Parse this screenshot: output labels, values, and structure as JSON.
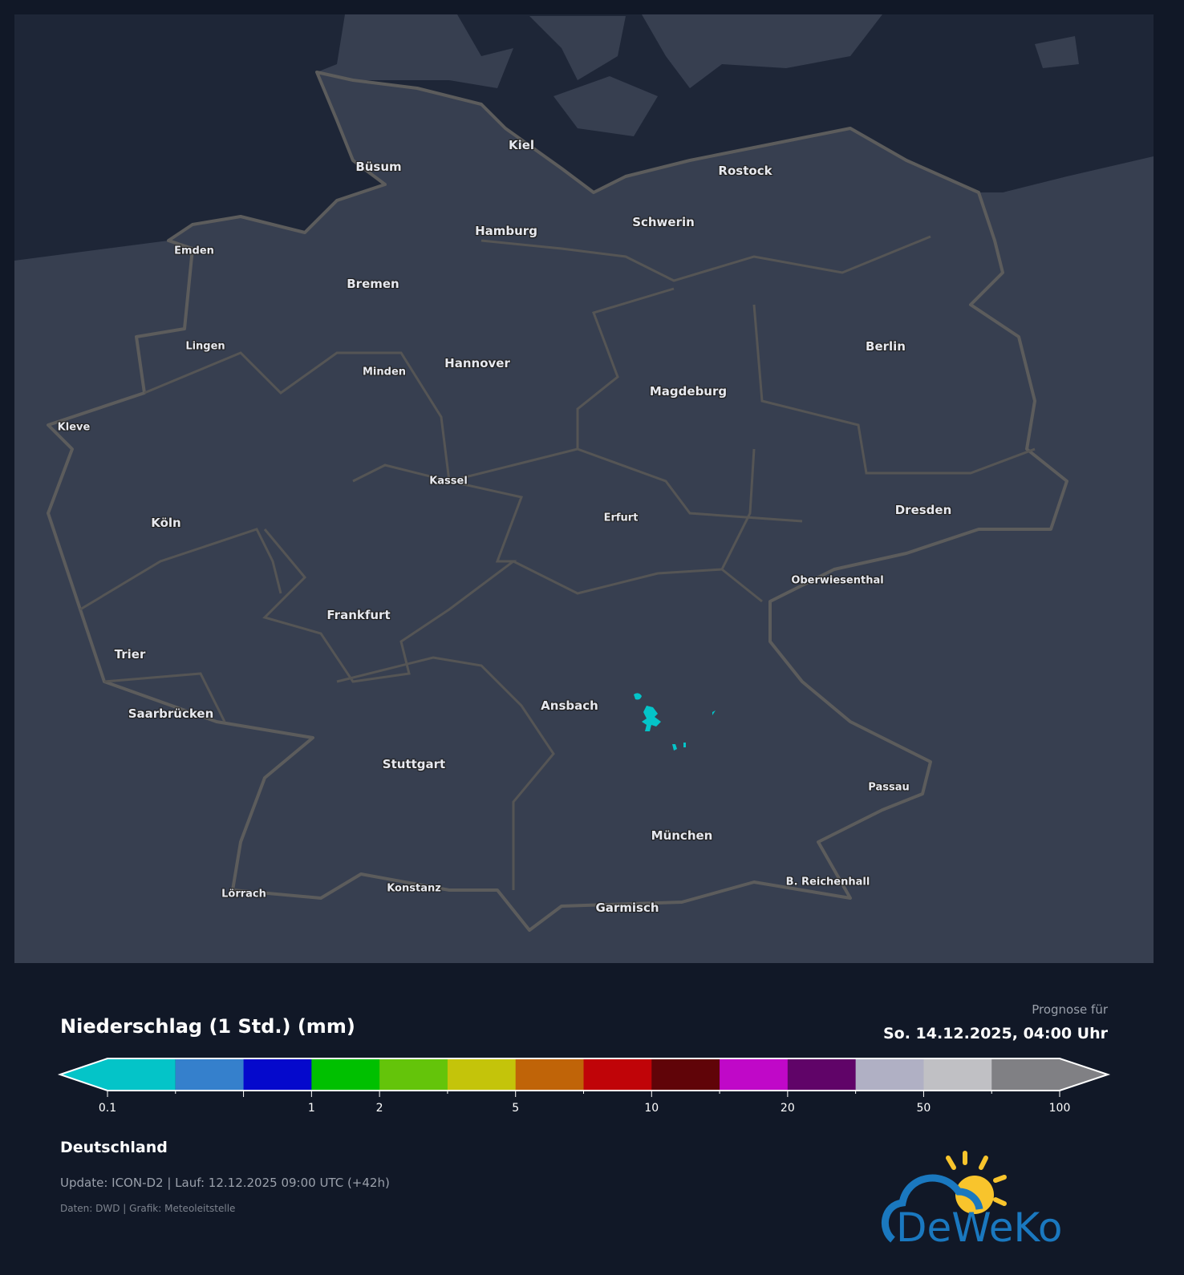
{
  "map": {
    "colors": {
      "land": "#373f50",
      "sea": "#1e2637",
      "border": "#5a5a5a",
      "precip": "#04c4c8"
    },
    "cities": [
      {
        "name": "Kiel",
        "size": "big"
      },
      {
        "name": "Büsum",
        "size": "big"
      },
      {
        "name": "Rostock",
        "size": "big"
      },
      {
        "name": "Schwerin",
        "size": "big"
      },
      {
        "name": "Hamburg",
        "size": "big"
      },
      {
        "name": "Emden",
        "size": "small"
      },
      {
        "name": "Bremen",
        "size": "big"
      },
      {
        "name": "Lingen",
        "size": "small"
      },
      {
        "name": "Minden",
        "size": "small"
      },
      {
        "name": "Hannover",
        "size": "big"
      },
      {
        "name": "Berlin",
        "size": "big"
      },
      {
        "name": "Magdeburg",
        "size": "big"
      },
      {
        "name": "Kleve",
        "size": "small"
      },
      {
        "name": "Kassel",
        "size": "small"
      },
      {
        "name": "Dresden",
        "size": "big"
      },
      {
        "name": "Köln",
        "size": "big"
      },
      {
        "name": "Erfurt",
        "size": "small"
      },
      {
        "name": "Oberwiesenthal",
        "size": "small"
      },
      {
        "name": "Frankfurt",
        "size": "big"
      },
      {
        "name": "Trier",
        "size": "big"
      },
      {
        "name": "Saarbrücken",
        "size": "big"
      },
      {
        "name": "Ansbach",
        "size": "big"
      },
      {
        "name": "Stuttgart",
        "size": "big"
      },
      {
        "name": "Passau",
        "size": "small"
      },
      {
        "name": "München",
        "size": "big"
      },
      {
        "name": "B. Reichenhall",
        "size": "small"
      },
      {
        "name": "Lörrach",
        "size": "small"
      },
      {
        "name": "Konstanz",
        "size": "small"
      },
      {
        "name": "Garmisch",
        "size": "big"
      }
    ]
  },
  "header": {
    "title": "Niederschlag (1 Std.) (mm)",
    "forecast_label": "Prognose für",
    "forecast_date": "So. 14.12.2025, 04:00 Uhr"
  },
  "legend": {
    "colors": [
      "#04c4c8",
      "#3580cc",
      "#0509cc",
      "#00c000",
      "#64c40a",
      "#c4c40a",
      "#c06408",
      "#c00408",
      "#600408",
      "#c008c8",
      "#600468",
      "#b0b0c4",
      "#c0c0c4",
      "#808084"
    ],
    "ticks": [
      "0.1",
      "1",
      "2",
      "5",
      "10",
      "20",
      "50",
      "100"
    ]
  },
  "footer": {
    "region": "Deutschland",
    "update": "Update: ICON-D2 | Lauf: 12.12.2025 09:00 UTC (+42h)",
    "credits": "Daten: DWD | Grafik: Meteoleitstelle"
  },
  "logo": {
    "text": "DeWeKo",
    "colors": {
      "cloud": "#1a78bf",
      "sun": "#f8c42c"
    }
  }
}
